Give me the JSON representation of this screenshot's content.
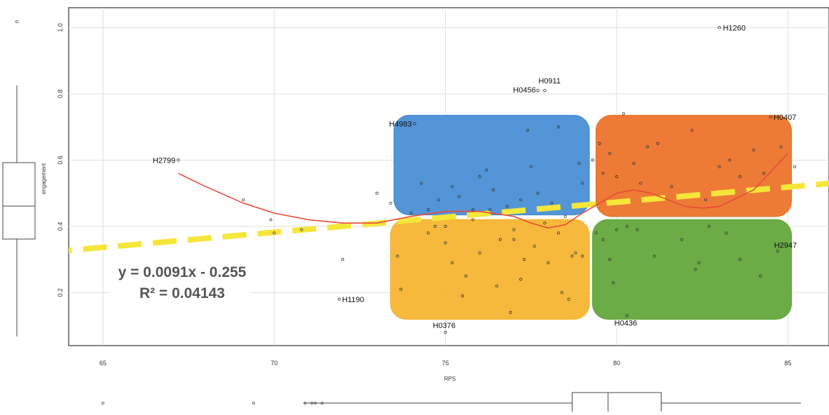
{
  "chart_data": {
    "type": "scatter",
    "xlabel": "RPS",
    "ylabel": "engagement",
    "xlim": [
      64,
      86.2
    ],
    "ylim": [
      0.04,
      1.06
    ],
    "x_ticks": [
      "65",
      "70",
      "75",
      "80",
      "85"
    ],
    "y_ticks": [
      "0.2",
      "0.4",
      "0.6",
      "0.8",
      "1.0"
    ],
    "grid": true,
    "trendline": {
      "equation": "y = 0.0091x - 0.255",
      "r_squared": "R² = 0.04143",
      "slope": 0.0091,
      "intercept": -0.255,
      "color": "#f5e63a"
    },
    "smooth_line": {
      "color": "#e8493a",
      "points": [
        [
          67.2,
          0.56
        ],
        [
          68,
          0.52
        ],
        [
          69.1,
          0.47
        ],
        [
          70,
          0.44
        ],
        [
          71,
          0.42
        ],
        [
          72,
          0.41
        ],
        [
          73,
          0.41
        ],
        [
          74,
          0.43
        ],
        [
          75,
          0.445
        ],
        [
          76,
          0.445
        ],
        [
          77,
          0.43
        ],
        [
          77.5,
          0.41
        ],
        [
          78,
          0.395
        ],
        [
          78.5,
          0.405
        ],
        [
          79,
          0.44
        ],
        [
          79.5,
          0.47
        ],
        [
          80,
          0.5
        ],
        [
          80.5,
          0.51
        ],
        [
          81,
          0.5
        ],
        [
          82,
          0.46
        ],
        [
          82.5,
          0.455
        ],
        [
          83,
          0.46
        ],
        [
          84,
          0.51
        ],
        [
          85,
          0.62
        ]
      ]
    },
    "quadrants": [
      {
        "name": "blue",
        "color": "#4a8fd4",
        "x_range": [
          73.5,
          79.2
        ],
        "y_range": [
          0.435,
          0.735
        ]
      },
      {
        "name": "orange",
        "color": "#ec742b",
        "x_range": [
          79.4,
          85.1
        ],
        "y_range": [
          0.43,
          0.735
        ]
      },
      {
        "name": "yellow",
        "color": "#f5b531",
        "x_range": [
          73.4,
          79.2
        ],
        "y_range": [
          0.12,
          0.42
        ]
      },
      {
        "name": "green",
        "color": "#63a83c",
        "x_range": [
          79.3,
          85.1
        ],
        "y_range": [
          0.12,
          0.42
        ]
      }
    ],
    "labeled_points": [
      {
        "label": "H1260",
        "x": 83.0,
        "y": 1.0
      },
      {
        "label": "H0911",
        "x": 77.9,
        "y": 0.81
      },
      {
        "label": "H0456",
        "x": 77.7,
        "y": 0.81
      },
      {
        "label": "H4983",
        "x": 74.1,
        "y": 0.71
      },
      {
        "label": "H0407",
        "x": 84.5,
        "y": 0.73
      },
      {
        "label": "H2799",
        "x": 67.2,
        "y": 0.6
      },
      {
        "label": "H2947",
        "x": 84.7,
        "y": 0.325
      },
      {
        "label": "H1190",
        "x": 71.9,
        "y": 0.18
      },
      {
        "label": "H0376",
        "x": 75.0,
        "y": 0.08
      },
      {
        "label": "H0436",
        "x": 80.3,
        "y": 0.13
      }
    ],
    "points": [
      [
        69.1,
        0.48
      ],
      [
        69.9,
        0.42
      ],
      [
        70.0,
        0.38
      ],
      [
        70.8,
        0.39
      ],
      [
        72.0,
        0.3
      ],
      [
        73.0,
        0.5
      ],
      [
        73.4,
        0.47
      ],
      [
        73.6,
        0.31
      ],
      [
        73.7,
        0.21
      ],
      [
        74.0,
        0.44
      ],
      [
        74.3,
        0.53
      ],
      [
        74.5,
        0.45
      ],
      [
        74.8,
        0.48
      ],
      [
        75.0,
        0.4
      ],
      [
        75.2,
        0.52
      ],
      [
        75.4,
        0.49
      ],
      [
        75.6,
        0.25
      ],
      [
        75.8,
        0.45
      ],
      [
        76.0,
        0.55
      ],
      [
        76.2,
        0.57
      ],
      [
        76.4,
        0.51
      ],
      [
        76.6,
        0.36
      ],
      [
        76.8,
        0.46
      ],
      [
        77.0,
        0.39
      ],
      [
        77.2,
        0.48
      ],
      [
        77.4,
        0.69
      ],
      [
        77.5,
        0.58
      ],
      [
        77.7,
        0.5
      ],
      [
        77.9,
        0.41
      ],
      [
        78.1,
        0.47
      ],
      [
        78.3,
        0.38
      ],
      [
        78.5,
        0.43
      ],
      [
        78.7,
        0.31
      ],
      [
        78.9,
        0.59
      ],
      [
        79.0,
        0.53
      ],
      [
        75.2,
        0.29
      ],
      [
        76.0,
        0.32
      ],
      [
        76.5,
        0.22
      ],
      [
        77.0,
        0.36
      ],
      [
        77.3,
        0.3
      ],
      [
        77.6,
        0.34
      ],
      [
        78.0,
        0.29
      ],
      [
        78.4,
        0.2
      ],
      [
        78.8,
        0.32
      ],
      [
        79.0,
        0.31
      ],
      [
        74.5,
        0.38
      ],
      [
        75.0,
        0.35
      ],
      [
        76.9,
        0.14
      ],
      [
        77.2,
        0.24
      ],
      [
        78.6,
        0.18
      ],
      [
        75.5,
        0.19
      ],
      [
        74.7,
        0.4
      ],
      [
        76.3,
        0.45
      ],
      [
        75.8,
        0.42
      ],
      [
        78.3,
        0.7
      ],
      [
        79.3,
        0.6
      ],
      [
        79.5,
        0.65
      ],
      [
        79.6,
        0.56
      ],
      [
        79.8,
        0.62
      ],
      [
        80.0,
        0.55
      ],
      [
        80.2,
        0.74
      ],
      [
        80.5,
        0.59
      ],
      [
        80.7,
        0.53
      ],
      [
        80.9,
        0.64
      ],
      [
        81.2,
        0.65
      ],
      [
        81.6,
        0.52
      ],
      [
        82.2,
        0.69
      ],
      [
        82.6,
        0.48
      ],
      [
        83.0,
        0.58
      ],
      [
        83.3,
        0.6
      ],
      [
        83.6,
        0.55
      ],
      [
        84.0,
        0.63
      ],
      [
        84.3,
        0.56
      ],
      [
        84.8,
        0.64
      ],
      [
        85.2,
        0.58
      ],
      [
        79.4,
        0.38
      ],
      [
        79.6,
        0.36
      ],
      [
        79.8,
        0.3
      ],
      [
        80.0,
        0.39
      ],
      [
        80.3,
        0.4
      ],
      [
        80.6,
        0.39
      ],
      [
        81.1,
        0.31
      ],
      [
        81.9,
        0.36
      ],
      [
        82.3,
        0.27
      ],
      [
        82.7,
        0.4
      ],
      [
        83.2,
        0.38
      ],
      [
        83.6,
        0.3
      ],
      [
        84.2,
        0.25
      ],
      [
        79.9,
        0.23
      ],
      [
        82.4,
        0.29
      ]
    ],
    "marginal_top_boxplot": {
      "q1": 0.455,
      "median": 0.52,
      "q3": 0.58
    },
    "marginal_bottom_boxplot": {
      "q1": 78.7,
      "median": 79.75,
      "q3": 81.3
    },
    "marginal_bottom_outliers": [
      65.0,
      69.4,
      70.9,
      71.1,
      71.2,
      71.4
    ]
  }
}
